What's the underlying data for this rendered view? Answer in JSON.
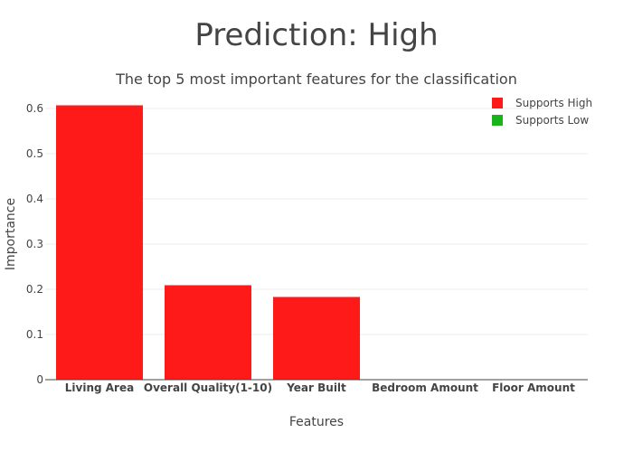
{
  "chart_data": {
    "type": "bar",
    "title": "Prediction: High",
    "subtitle": "The top 5 most important features for the classification",
    "xlabel": "Features",
    "ylabel": "Importance",
    "categories": [
      "Living Area",
      "Overall Quality(1-10)",
      "Year Built",
      "Bedroom Amount",
      "Floor Amount"
    ],
    "values": [
      0.607,
      0.209,
      0.183,
      0.0,
      0.0
    ],
    "bar_colors": [
      "#ff1a1a",
      "#ff1a1a",
      "#ff1a1a",
      "#ff1a1a",
      "#ff1a1a"
    ],
    "ylim": [
      0,
      0.64
    ],
    "yticks": [
      0,
      0.1,
      0.2,
      0.3,
      0.4,
      0.5,
      0.6
    ],
    "ytick_labels": [
      "0",
      "0.1",
      "0.2",
      "0.3",
      "0.4",
      "0.5",
      "0.6"
    ],
    "grid": true,
    "legend_position": "top-right",
    "legend": [
      {
        "label": "Supports High",
        "color": "#ff1a1a"
      },
      {
        "label": "Supports Low",
        "color": "#1ab31a"
      }
    ]
  }
}
